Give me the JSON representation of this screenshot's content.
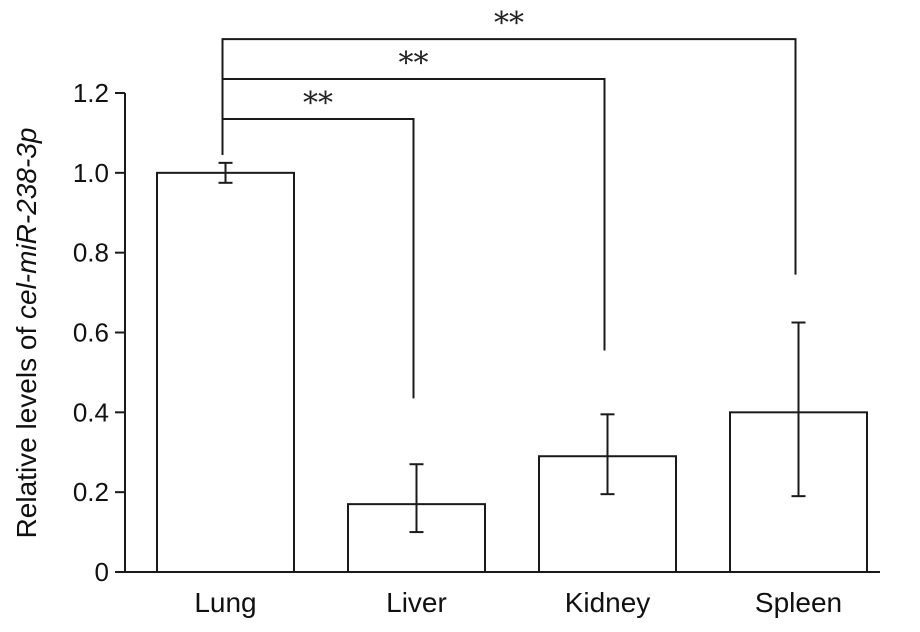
{
  "chart_data": {
    "type": "bar",
    "categories": [
      "Lung",
      "Liver",
      "Kidney",
      "Spleen"
    ],
    "values": [
      1.0,
      0.17,
      0.29,
      0.4
    ],
    "error_low": [
      0.975,
      0.1,
      0.195,
      0.19
    ],
    "error_high": [
      1.025,
      0.27,
      0.395,
      0.625
    ],
    "ylabel_prefix": "Relative levels of ",
    "ylabel_italic": "cel-miR-238-3p",
    "xlabel": "",
    "ylim": [
      0,
      1.2
    ],
    "yticks": [
      "0",
      "0.2",
      "0.4",
      "0.6",
      "0.8",
      "1.0",
      "1.2"
    ],
    "ytick_values": [
      0,
      0.2,
      0.4,
      0.6,
      0.8,
      1.0,
      1.2
    ],
    "grid": false,
    "bar_fill": "#ffffff",
    "bar_stroke": "#1a1a1a",
    "significance": [
      {
        "from": "Lung",
        "to": "Liver",
        "label": "**",
        "bracket_y": 1.135,
        "drop_to": 0.435
      },
      {
        "from": "Lung",
        "to": "Kidney",
        "label": "**",
        "bracket_y": 1.235,
        "drop_to": 0.555
      },
      {
        "from": "Lung",
        "to": "Spleen",
        "label": "**",
        "bracket_y": 1.335,
        "drop_to": 0.745
      }
    ]
  }
}
